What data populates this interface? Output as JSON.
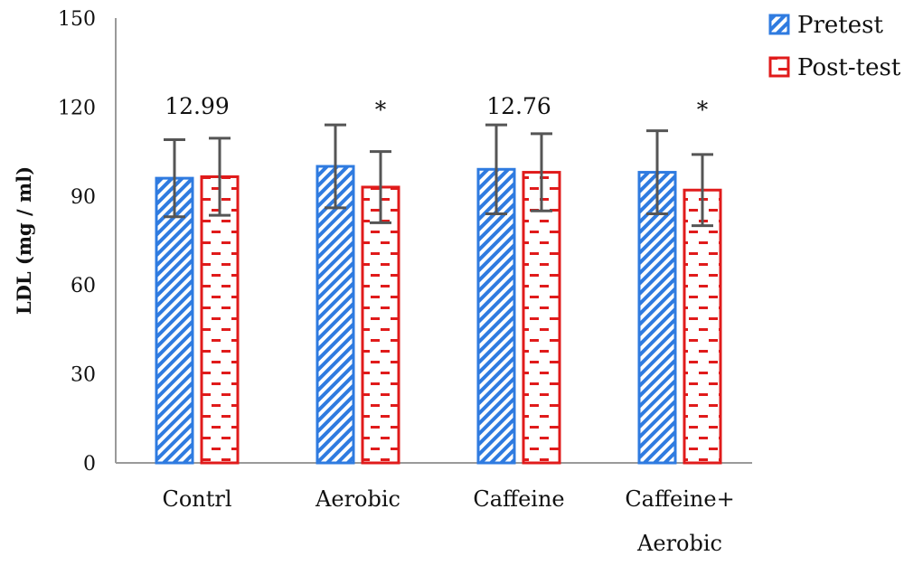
{
  "chart_data": {
    "type": "bar",
    "title": "",
    "xlabel": "",
    "ylabel": "LDL (mg / ml)",
    "ylim": [
      0,
      150
    ],
    "yticks": [
      "0",
      "30",
      "60",
      "90",
      "120",
      "150"
    ],
    "categories": [
      [
        "Contrl"
      ],
      [
        "Aerobic"
      ],
      [
        "Caffeine"
      ],
      [
        "Caffeine+",
        "Aerobic"
      ]
    ],
    "legend_position": "top-right",
    "grid": false,
    "series": [
      {
        "name": "Pretest",
        "color": "#2f7be0",
        "pattern": "diagonal-stripes",
        "values": [
          96,
          100,
          99,
          98
        ],
        "errors": [
          13,
          14,
          15,
          14
        ]
      },
      {
        "name": "Post-test",
        "color": "#e01b1b",
        "pattern": "dashes",
        "values": [
          96.5,
          93,
          98,
          92
        ],
        "errors": [
          13,
          12,
          13,
          12
        ]
      }
    ],
    "annotations": [
      {
        "category": 0,
        "text": "12.99"
      },
      {
        "category": 1,
        "series": 1,
        "text": "*"
      },
      {
        "category": 2,
        "text": "12.76"
      },
      {
        "category": 3,
        "series": 1,
        "text": "*"
      }
    ]
  }
}
